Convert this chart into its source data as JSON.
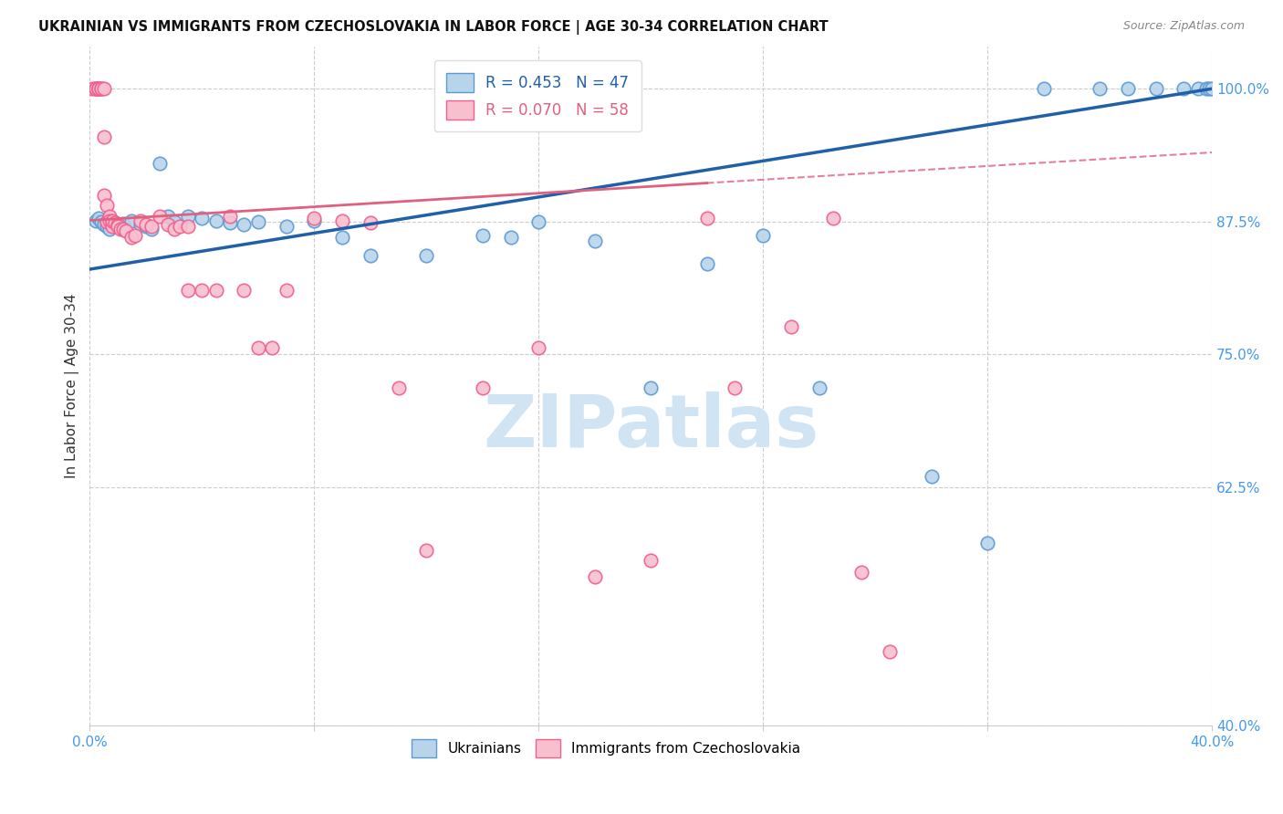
{
  "title": "UKRAINIAN VS IMMIGRANTS FROM CZECHOSLOVAKIA IN LABOR FORCE | AGE 30-34 CORRELATION CHART",
  "source": "Source: ZipAtlas.com",
  "ylabel": "In Labor Force | Age 30-34",
  "xlim": [
    0.0,
    0.4
  ],
  "ylim": [
    0.4,
    1.04
  ],
  "xticks": [
    0.0,
    0.08,
    0.16,
    0.24,
    0.32,
    0.4
  ],
  "xticklabels": [
    "0.0%",
    "",
    "",
    "",
    "",
    "40.0%"
  ],
  "yticks": [
    0.4,
    0.625,
    0.75,
    0.875,
    1.0
  ],
  "yticklabels": [
    "40.0%",
    "62.5%",
    "75.0%",
    "87.5%",
    "100.0%"
  ],
  "legend_blue_r": "R = 0.453",
  "legend_blue_n": "N = 47",
  "legend_pink_r": "R = 0.070",
  "legend_pink_n": "N = 58",
  "blue_color": "#b8d4ea",
  "pink_color": "#f8c0ce",
  "blue_edge": "#5b9bd5",
  "pink_edge": "#f06090",
  "trend_blue_color": "#2060a8",
  "trend_pink_color": "#e06080",
  "grid_color": "#cccccc",
  "watermark_text": "ZIPatlas",
  "watermark_color": "#d0e4f4",
  "title_color": "#111111",
  "source_color": "#888888",
  "axis_tick_color": "#4499ee",
  "blue_x": [
    0.002,
    0.003,
    0.004,
    0.005,
    0.006,
    0.007,
    0.008,
    0.009,
    0.01,
    0.012,
    0.015,
    0.018,
    0.02,
    0.022,
    0.025,
    0.028,
    0.03,
    0.035,
    0.04,
    0.045,
    0.05,
    0.055,
    0.06,
    0.07,
    0.08,
    0.09,
    0.1,
    0.12,
    0.14,
    0.15,
    0.16,
    0.18,
    0.2,
    0.22,
    0.24,
    0.26,
    0.3,
    0.32,
    0.34,
    0.36,
    0.37,
    0.38,
    0.39,
    0.395,
    0.398,
    0.399,
    0.4
  ],
  "blue_y": [
    0.876,
    0.878,
    0.875,
    0.872,
    0.87,
    0.868,
    0.876,
    0.874,
    0.871,
    0.873,
    0.876,
    0.872,
    0.87,
    0.868,
    0.93,
    0.88,
    0.875,
    0.88,
    0.878,
    0.876,
    0.874,
    0.872,
    0.875,
    0.87,
    0.876,
    0.86,
    0.843,
    0.843,
    0.862,
    0.86,
    0.875,
    0.857,
    0.718,
    0.835,
    0.862,
    0.718,
    0.635,
    0.572,
    1.0,
    1.0,
    1.0,
    1.0,
    1.0,
    1.0,
    1.0,
    1.0,
    1.0
  ],
  "pink_x": [
    0.001,
    0.002,
    0.002,
    0.002,
    0.003,
    0.003,
    0.003,
    0.004,
    0.004,
    0.005,
    0.005,
    0.005,
    0.006,
    0.006,
    0.007,
    0.007,
    0.008,
    0.008,
    0.008,
    0.009,
    0.01,
    0.01,
    0.011,
    0.012,
    0.013,
    0.015,
    0.016,
    0.018,
    0.02,
    0.022,
    0.025,
    0.028,
    0.03,
    0.032,
    0.035,
    0.035,
    0.04,
    0.045,
    0.05,
    0.055,
    0.06,
    0.065,
    0.07,
    0.08,
    0.09,
    0.1,
    0.11,
    0.12,
    0.14,
    0.16,
    0.18,
    0.2,
    0.22,
    0.23,
    0.25,
    0.265,
    0.275,
    0.285
  ],
  "pink_y": [
    1.0,
    1.0,
    1.0,
    1.0,
    1.0,
    1.0,
    1.0,
    1.0,
    1.0,
    1.0,
    0.955,
    0.9,
    0.89,
    0.875,
    0.88,
    0.876,
    0.874,
    0.87,
    0.876,
    0.874,
    0.872,
    0.87,
    0.868,
    0.868,
    0.866,
    0.86,
    0.862,
    0.876,
    0.872,
    0.87,
    0.88,
    0.872,
    0.868,
    0.87,
    0.87,
    0.81,
    0.81,
    0.81,
    0.88,
    0.81,
    0.756,
    0.756,
    0.81,
    0.878,
    0.876,
    0.874,
    0.718,
    0.565,
    0.718,
    0.756,
    0.54,
    0.556,
    0.878,
    0.718,
    0.776,
    0.878,
    0.545,
    0.47
  ],
  "trend_blue_x0": 0.0,
  "trend_blue_y0": 0.83,
  "trend_blue_x1": 0.4,
  "trend_blue_y1": 1.0,
  "trend_pink_x0": 0.0,
  "trend_pink_y0": 0.876,
  "trend_pink_x1": 0.4,
  "trend_pink_y1": 0.94,
  "trend_pink_dash_x0": 0.22,
  "trend_pink_dash_x1": 0.4,
  "marker_size": 110
}
